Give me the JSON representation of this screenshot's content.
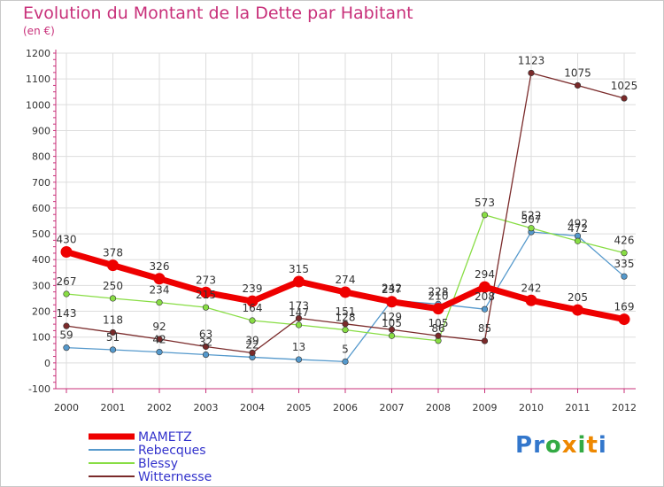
{
  "chart_data": {
    "type": "line",
    "title": "Evolution du Montant de la Dette par Habitant",
    "subtitle": "(en €)",
    "x": [
      "2000",
      "2001",
      "2002",
      "2003",
      "2004",
      "2005",
      "2006",
      "2007",
      "2008",
      "2009",
      "2010",
      "2011",
      "2012"
    ],
    "yticks": [
      -100,
      0,
      100,
      200,
      300,
      400,
      500,
      600,
      700,
      800,
      900,
      1000,
      1100,
      1200
    ],
    "ylim": [
      -100,
      1200
    ],
    "grid": true,
    "legend_position": "bottom-left",
    "series": [
      {
        "name": "MAMETZ",
        "color": "#ee0000",
        "values": [
          430,
          378,
          326,
          273,
          239,
          315,
          274,
          237,
          210,
          294,
          242,
          205,
          169
        ]
      },
      {
        "name": "Rebecques",
        "color": "#5599cc",
        "values": [
          59,
          51,
          42,
          32,
          22,
          13,
          5,
          242,
          228,
          208,
          507,
          492,
          335
        ]
      },
      {
        "name": "Blessy",
        "color": "#88dd44",
        "values": [
          267,
          250,
          234,
          215,
          164,
          147,
          128,
          105,
          86,
          573,
          522,
          472,
          426
        ]
      },
      {
        "name": "Witternesse",
        "color": "#7a2a2a",
        "values": [
          143,
          118,
          92,
          63,
          39,
          173,
          151,
          129,
          105,
          85,
          1123,
          1075,
          1025
        ]
      }
    ]
  },
  "logo": {
    "text": "Proxiti"
  }
}
